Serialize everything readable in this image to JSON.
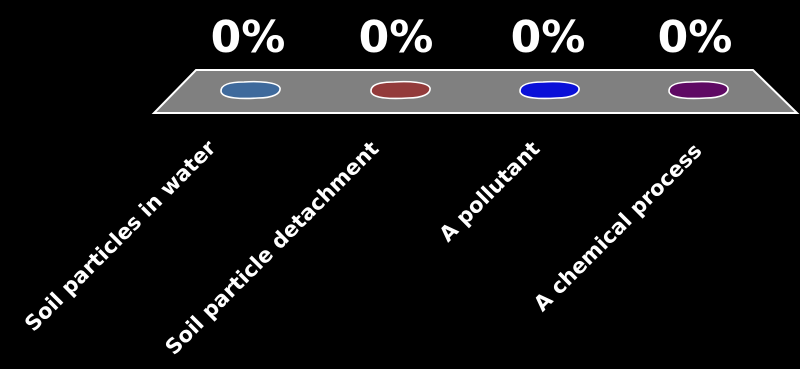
{
  "chart_data": {
    "type": "bar",
    "title": "",
    "xlabel": "",
    "ylabel": "",
    "ylim": [
      0,
      100
    ],
    "categories": [
      "Soil particles in water",
      "Soil particle detachment",
      "A pollutant",
      "A chemical process"
    ],
    "values": [
      0,
      0,
      0,
      0
    ],
    "value_labels": [
      "0%",
      "0%",
      "0%",
      "0%"
    ],
    "bar_colors": [
      "#3f6a9c",
      "#933b3b",
      "#0a10d8",
      "#5f0a64"
    ],
    "floor_color": "#808080",
    "background": "#000000"
  }
}
